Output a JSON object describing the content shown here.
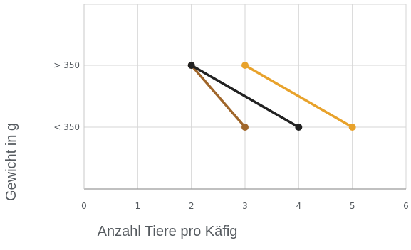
{
  "chart_data": {
    "type": "line",
    "title": "",
    "xlabel": "Anzahl Tiere pro Käfig",
    "ylabel": "Gewicht in g",
    "xlim": [
      0,
      6
    ],
    "x_ticks": [
      "0",
      "1",
      "2",
      "3",
      "4",
      "5",
      "6"
    ],
    "y_categories": [
      "< 350",
      "> 350"
    ],
    "grid": true,
    "legend": "none",
    "series": [
      {
        "color": "#a0662a",
        "points": [
          {
            "x": 2,
            "y": "> 350"
          },
          {
            "x": 3,
            "y": "< 350"
          }
        ]
      },
      {
        "color": "#222222",
        "points": [
          {
            "x": 2,
            "y": "> 350"
          },
          {
            "x": 4,
            "y": "< 350"
          }
        ]
      },
      {
        "color": "#e8a22b",
        "points": [
          {
            "x": 3,
            "y": "> 350"
          },
          {
            "x": 5,
            "y": "< 350"
          }
        ]
      }
    ]
  }
}
